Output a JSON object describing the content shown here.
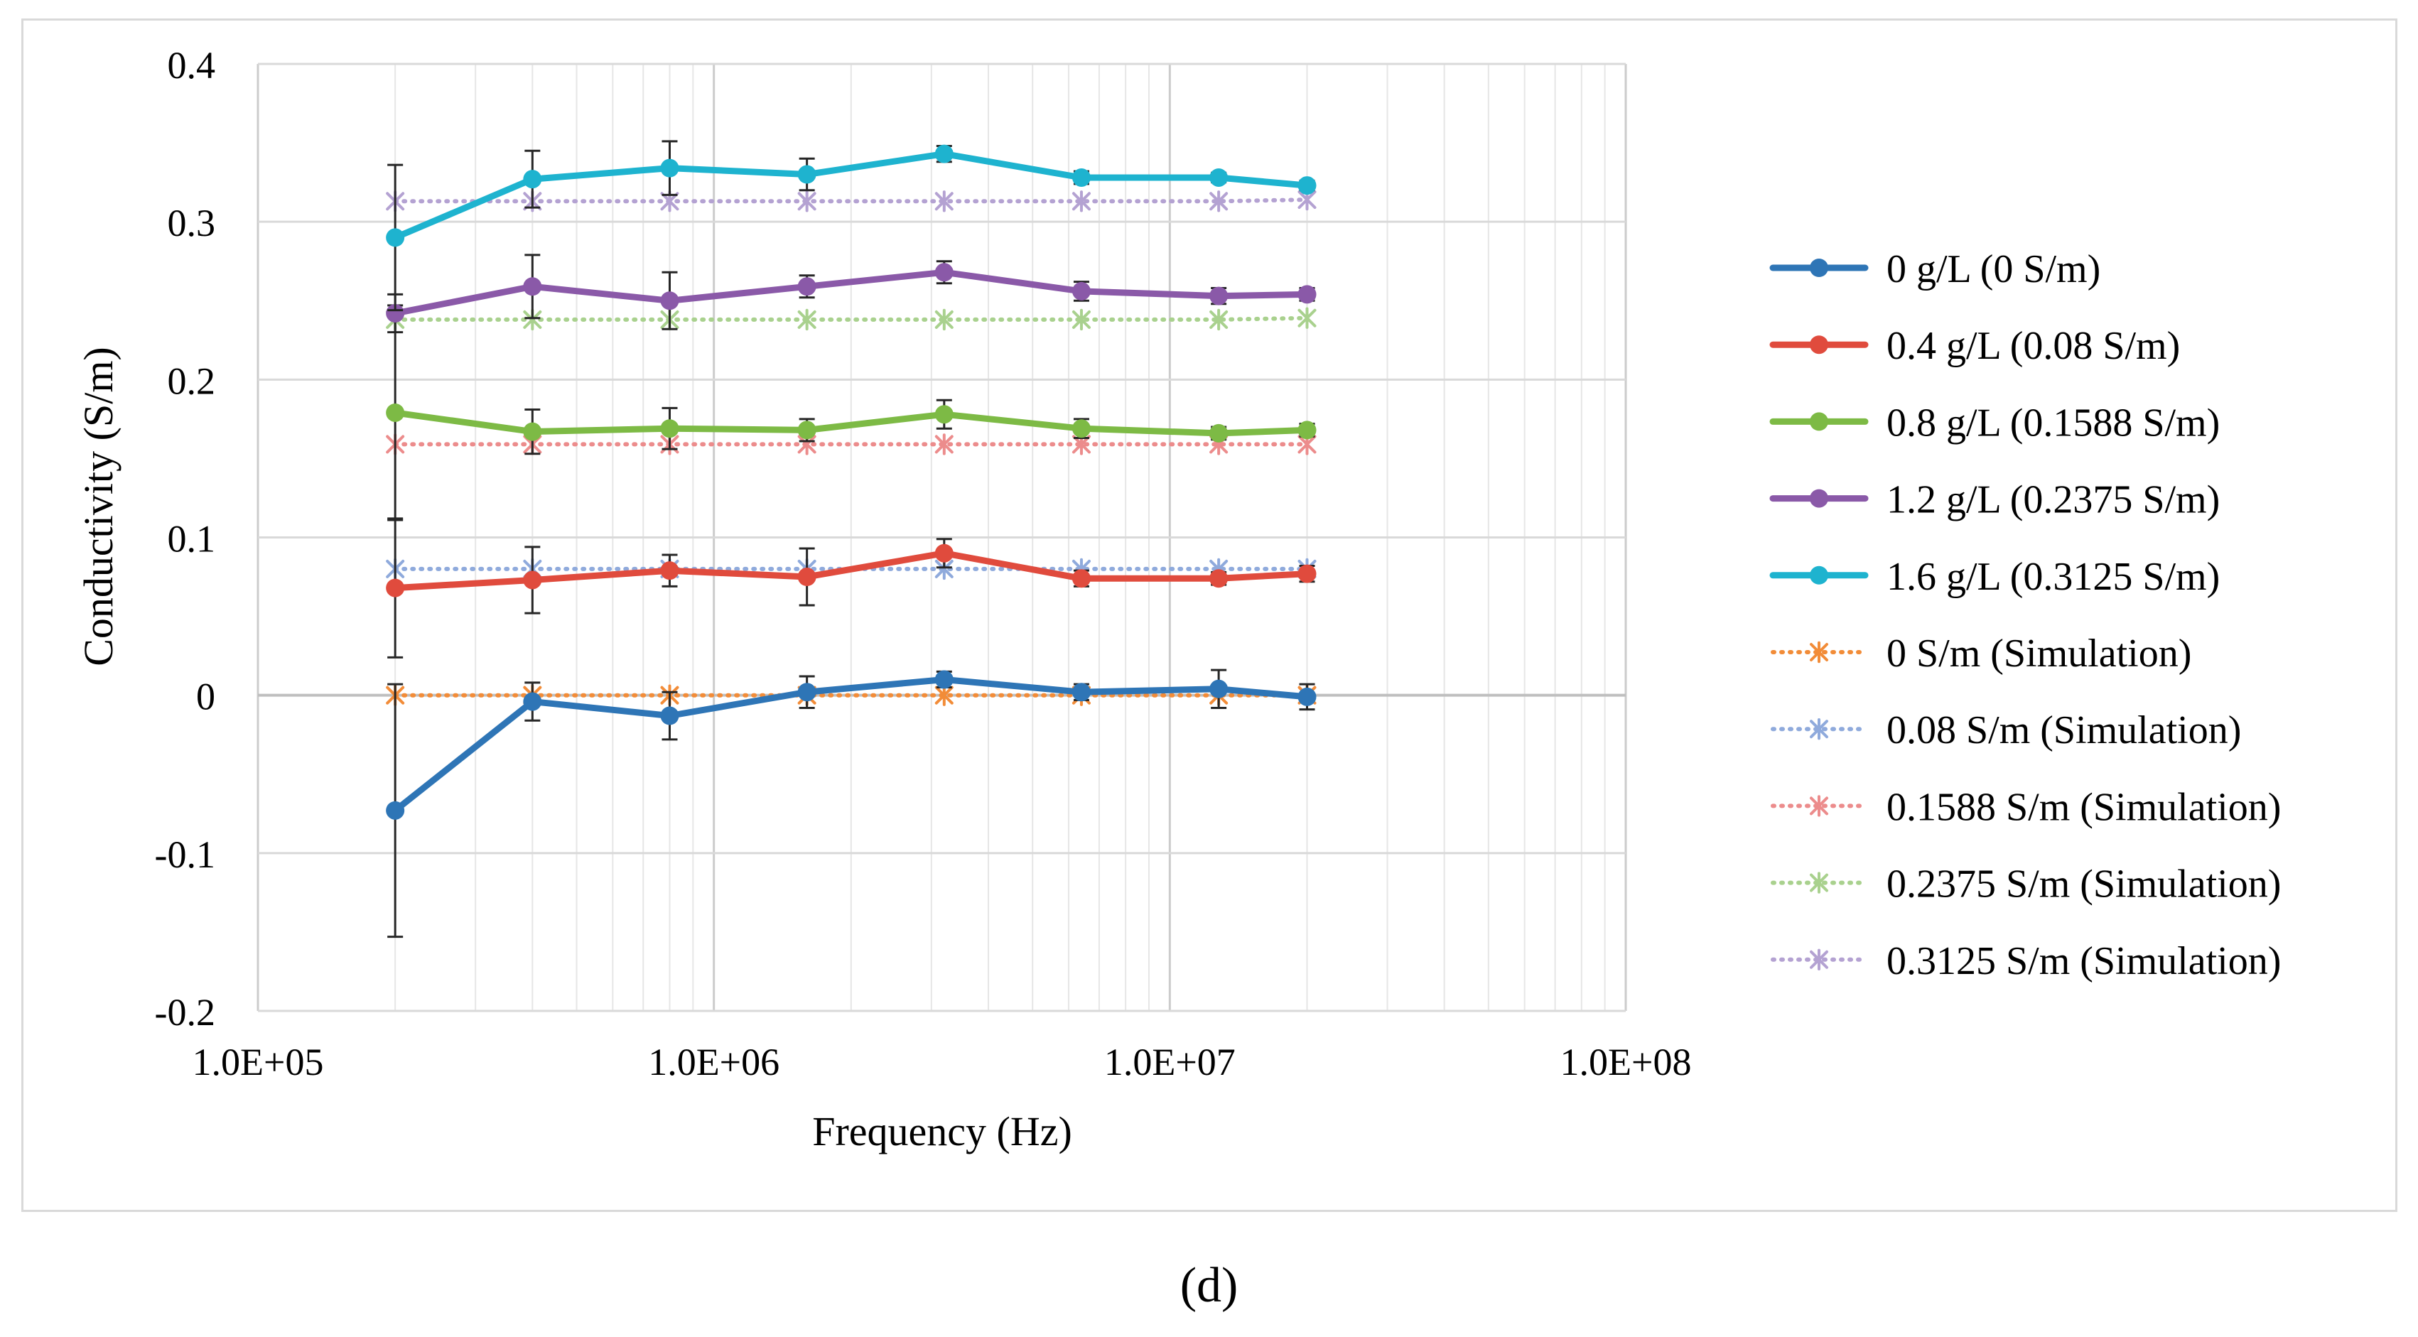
{
  "panel_label": "(d)",
  "chart_data": {
    "type": "line",
    "title": "",
    "xlabel": "Frequency (Hz)",
    "ylabel": "Conductivity (S/m)",
    "xscale": "log",
    "xlim": [
      100000,
      100000000
    ],
    "ylim": [
      -0.2,
      0.4
    ],
    "x_ticks": [
      100000,
      1000000,
      10000000,
      100000000
    ],
    "x_tick_labels": [
      "1.0E+05",
      "1.0E+06",
      "1.0E+07",
      "1.0E+08"
    ],
    "y_ticks": [
      -0.2,
      -0.1,
      0,
      0.1,
      0.2,
      0.3,
      0.4
    ],
    "y_tick_labels": [
      "-0.2",
      "-0.1",
      "0",
      "0.1",
      "0.2",
      "0.3",
      "0.4"
    ],
    "grid": true,
    "legend_position": "right",
    "x": [
      200000,
      400000,
      800000,
      1600000,
      3200000,
      6400000,
      12800000,
      20000000
    ],
    "series": [
      {
        "name": "0 g/L (0 S/m)",
        "color": "#2E75B6",
        "style": "solid",
        "marker": "circle",
        "values": [
          -0.073,
          -0.004,
          -0.013,
          0.002,
          0.01,
          0.002,
          0.004,
          -0.001
        ],
        "errors": [
          0.08,
          0.012,
          0.015,
          0.01,
          0.005,
          0.005,
          0.012,
          0.008
        ]
      },
      {
        "name": "0.4 g/L (0.08 S/m)",
        "color": "#E04B3D",
        "style": "solid",
        "marker": "circle",
        "values": [
          0.068,
          0.073,
          0.079,
          0.075,
          0.09,
          0.074,
          0.074,
          0.077
        ],
        "errors": [
          0.044,
          0.021,
          0.01,
          0.018,
          0.009,
          0.005,
          0.004,
          0.005
        ]
      },
      {
        "name": "0.8 g/L (0.1588 S/m)",
        "color": "#7DBA45",
        "style": "solid",
        "marker": "circle",
        "values": [
          0.179,
          0.167,
          0.169,
          0.168,
          0.178,
          0.169,
          0.166,
          0.168
        ],
        "errors": [
          0.068,
          0.014,
          0.013,
          0.007,
          0.009,
          0.006,
          0.004,
          0.004
        ]
      },
      {
        "name": "1.2 g/L (0.2375 S/m)",
        "color": "#8A59A8",
        "style": "solid",
        "marker": "circle",
        "values": [
          0.242,
          0.259,
          0.25,
          0.259,
          0.268,
          0.256,
          0.253,
          0.254
        ],
        "errors": [
          0.012,
          0.02,
          0.018,
          0.007,
          0.007,
          0.006,
          0.005,
          0.004
        ]
      },
      {
        "name": "1.6 g/L (0.3125 S/m)",
        "color": "#1EB3CF",
        "style": "solid",
        "marker": "circle",
        "values": [
          0.29,
          0.327,
          0.334,
          0.33,
          0.343,
          0.328,
          0.328,
          0.323
        ],
        "errors": [
          0.046,
          0.018,
          0.017,
          0.01,
          0.005,
          0.004,
          0.003,
          0.003
        ]
      },
      {
        "name": "0 S/m (Simulation)",
        "color": "#F28C38",
        "style": "dotted",
        "marker": "star",
        "values": [
          0,
          0,
          0,
          0,
          0,
          0,
          0,
          0
        ]
      },
      {
        "name": "0.08 S/m (Simulation)",
        "color": "#8FAADC",
        "style": "dotted",
        "marker": "star",
        "values": [
          0.08,
          0.08,
          0.08,
          0.08,
          0.08,
          0.08,
          0.08,
          0.08
        ]
      },
      {
        "name": "0.1588 S/m (Simulation)",
        "color": "#EC8C8C",
        "style": "dotted",
        "marker": "star",
        "values": [
          0.159,
          0.159,
          0.159,
          0.159,
          0.159,
          0.159,
          0.159,
          0.159
        ]
      },
      {
        "name": "0.2375 S/m (Simulation)",
        "color": "#A9D18E",
        "style": "dotted",
        "marker": "star",
        "values": [
          0.238,
          0.238,
          0.238,
          0.238,
          0.238,
          0.238,
          0.238,
          0.239
        ]
      },
      {
        "name": "0.3125 S/m (Simulation)",
        "color": "#B4A2D2",
        "style": "dotted",
        "marker": "star",
        "values": [
          0.313,
          0.313,
          0.313,
          0.313,
          0.313,
          0.313,
          0.313,
          0.314
        ]
      }
    ]
  }
}
